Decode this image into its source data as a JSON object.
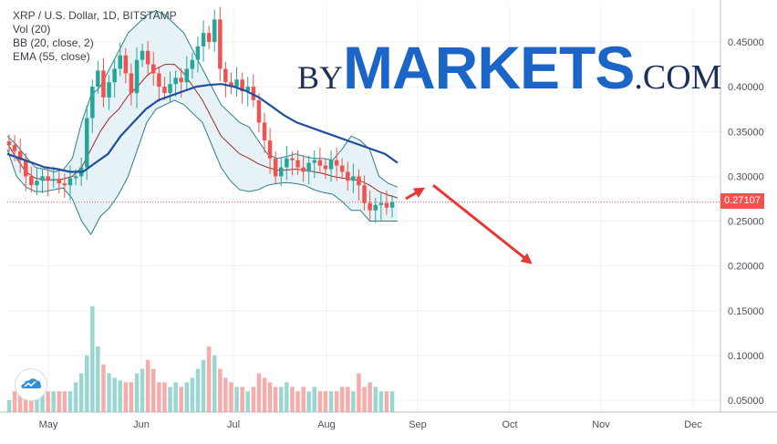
{
  "legend": {
    "title": "XRP / U.S. Dollar, 1D, BITSTAMP",
    "vol": "Vol (20)",
    "bb": "BB (20, close, 2)",
    "ema": "EMA (55, close)"
  },
  "brand": {
    "by": "BY",
    "markets": "MARKETS",
    "com": ".COM"
  },
  "current_price": "0.27107",
  "colors": {
    "up": "#26a69a",
    "down": "#ef5350",
    "ema": "#1f4e9a",
    "bb_mid": "#9c2b2b",
    "bb_band": "#2f7f86",
    "bb_fill": "#e3f1f5",
    "arrow": "#e53935",
    "grid": "#eef0f3"
  },
  "icons": {
    "logo": "tradingview-cloud-icon"
  },
  "chart_data": {
    "type": "candlestick",
    "title": "XRP / U.S. Dollar, 1D, BITSTAMP",
    "x_labels": [
      "May",
      "Jun",
      "Jul",
      "Aug",
      "Sep",
      "Oct",
      "Nov",
      "Dec"
    ],
    "y_ticks": [
      "0.45000",
      "0.40000",
      "0.35000",
      "0.30000",
      "0.25000",
      "0.20000",
      "0.15000",
      "0.10000",
      "0.05000"
    ],
    "ylim": [
      0.04,
      0.48
    ],
    "grid": true,
    "current_price": 0.27107,
    "candles_close": [
      0.335,
      0.328,
      0.318,
      0.3,
      0.29,
      0.295,
      0.3,
      0.295,
      0.297,
      0.292,
      0.29,
      0.298,
      0.3,
      0.31,
      0.365,
      0.4,
      0.418,
      0.388,
      0.405,
      0.42,
      0.435,
      0.415,
      0.393,
      0.43,
      0.44,
      0.425,
      0.415,
      0.4,
      0.393,
      0.403,
      0.41,
      0.405,
      0.42,
      0.43,
      0.445,
      0.46,
      0.45,
      0.475,
      0.42,
      0.405,
      0.4,
      0.408,
      0.395,
      0.4,
      0.385,
      0.36,
      0.34,
      0.32,
      0.3,
      0.31,
      0.32,
      0.318,
      0.31,
      0.305,
      0.315,
      0.318,
      0.312,
      0.308,
      0.318,
      0.312,
      0.305,
      0.295,
      0.3,
      0.29,
      0.27,
      0.262,
      0.268,
      0.27,
      0.265,
      0.271
    ],
    "bollinger_upper": [
      0.345,
      0.335,
      0.322,
      0.31,
      0.308,
      0.305,
      0.307,
      0.32,
      0.36,
      0.39,
      0.4,
      0.42,
      0.44,
      0.46,
      0.47,
      0.48,
      0.485,
      0.48,
      0.47,
      0.46,
      0.44,
      0.42,
      0.4,
      0.38,
      0.37,
      0.36,
      0.355,
      0.34,
      0.325,
      0.32,
      0.322,
      0.325,
      0.322,
      0.32,
      0.32,
      0.318,
      0.33,
      0.345,
      0.34,
      0.33,
      0.3,
      0.292,
      0.288
    ],
    "bollinger_lower": [
      0.33,
      0.3,
      0.288,
      0.283,
      0.283,
      0.285,
      0.287,
      0.275,
      0.25,
      0.235,
      0.255,
      0.265,
      0.28,
      0.3,
      0.33,
      0.36,
      0.375,
      0.38,
      0.385,
      0.38,
      0.37,
      0.36,
      0.335,
      0.31,
      0.295,
      0.285,
      0.283,
      0.285,
      0.29,
      0.292,
      0.293,
      0.292,
      0.29,
      0.285,
      0.282,
      0.28,
      0.272,
      0.262,
      0.262,
      0.25,
      0.25,
      0.25,
      0.25
    ],
    "bollinger_mid": [
      0.337,
      0.32,
      0.305,
      0.298,
      0.296,
      0.296,
      0.297,
      0.3,
      0.31,
      0.33,
      0.35,
      0.365,
      0.375,
      0.39,
      0.4,
      0.412,
      0.42,
      0.425,
      0.425,
      0.415,
      0.4,
      0.385,
      0.365,
      0.345,
      0.335,
      0.325,
      0.32,
      0.314,
      0.31,
      0.307,
      0.307,
      0.308,
      0.307,
      0.305,
      0.303,
      0.3,
      0.298,
      0.297,
      0.295,
      0.29,
      0.283,
      0.279,
      0.276
    ],
    "ema55": [
      0.325,
      0.32,
      0.315,
      0.31,
      0.308,
      0.305,
      0.305,
      0.315,
      0.325,
      0.345,
      0.36,
      0.375,
      0.385,
      0.39,
      0.395,
      0.4,
      0.402,
      0.403,
      0.4,
      0.395,
      0.388,
      0.378,
      0.368,
      0.36,
      0.355,
      0.35,
      0.345,
      0.34,
      0.335,
      0.33,
      0.325,
      0.315
    ],
    "volume": [
      0.05,
      0.06,
      0.06,
      0.07,
      0.07,
      0.06,
      0.06,
      0.06,
      0.06,
      0.06,
      0.06,
      0.06,
      0.07,
      0.08,
      0.1,
      0.155,
      0.11,
      0.09,
      0.08,
      0.075,
      0.072,
      0.07,
      0.07,
      0.08,
      0.085,
      0.095,
      0.085,
      0.07,
      0.07,
      0.065,
      0.07,
      0.065,
      0.07,
      0.075,
      0.085,
      0.095,
      0.11,
      0.1,
      0.085,
      0.075,
      0.07,
      0.065,
      0.065,
      0.06,
      0.065,
      0.08,
      0.075,
      0.07,
      0.065,
      0.065,
      0.07,
      0.065,
      0.06,
      0.065,
      0.06,
      0.065,
      0.06,
      0.06,
      0.06,
      0.06,
      0.065,
      0.065,
      0.06,
      0.08,
      0.065,
      0.07,
      0.065,
      0.06,
      0.06,
      0.06
    ],
    "projection_arrows": [
      {
        "from": [
          0.445,
          0.275
        ],
        "to": [
          0.462,
          0.285
        ]
      },
      {
        "from": [
          0.475,
          0.29
        ],
        "to": [
          0.58,
          0.205
        ]
      }
    ]
  }
}
